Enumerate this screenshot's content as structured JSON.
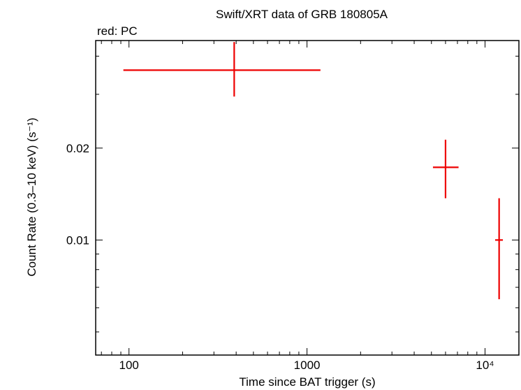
{
  "chart_data": {
    "type": "scatter",
    "title": "Swift/XRT data of GRB 180805A",
    "subtitle": "red: PC",
    "xlabel": "Time since BAT trigger (s)",
    "ylabel": "Count Rate (0.3–10 keV) (s⁻¹)",
    "x_scale": "log",
    "y_scale": "log",
    "xlim": [
      65,
      15500
    ],
    "ylim": [
      0.0042,
      0.045
    ],
    "x_ticks": [
      {
        "value": 100,
        "label": "100"
      },
      {
        "value": 1000,
        "label": "1000"
      },
      {
        "value": 10000,
        "label": "10⁴"
      }
    ],
    "y_ticks": [
      {
        "value": 0.01,
        "label": "0.01"
      },
      {
        "value": 0.02,
        "label": "0.02"
      }
    ],
    "grid": false,
    "series": [
      {
        "name": "PC",
        "color": "#ee0000",
        "points": [
          {
            "x": 390,
            "x_lo": 93,
            "x_hi": 1190,
            "y": 0.036,
            "y_lo": 0.0295,
            "y_hi": 0.0445
          },
          {
            "x": 6000,
            "x_lo": 5100,
            "x_hi": 7100,
            "y": 0.0173,
            "y_lo": 0.0137,
            "y_hi": 0.0213
          },
          {
            "x": 12000,
            "x_lo": 11400,
            "x_hi": 12600,
            "y": 0.01,
            "y_lo": 0.0064,
            "y_hi": 0.0137
          }
        ]
      }
    ]
  }
}
